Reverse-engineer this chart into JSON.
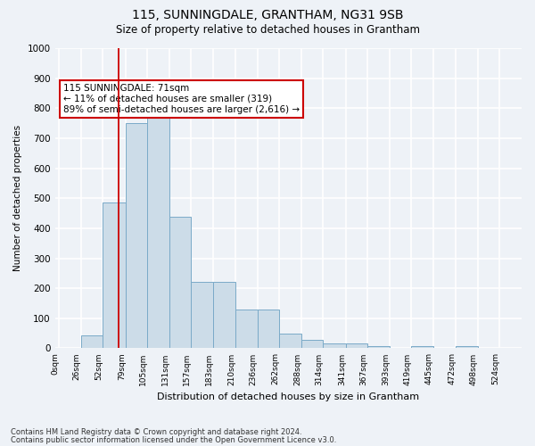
{
  "title": "115, SUNNINGDALE, GRANTHAM, NG31 9SB",
  "subtitle": "Size of property relative to detached houses in Grantham",
  "xlabel": "Distribution of detached houses by size in Grantham",
  "ylabel": "Number of detached properties",
  "bar_labels": [
    "0sqm",
    "26sqm",
    "52sqm",
    "79sqm",
    "105sqm",
    "131sqm",
    "157sqm",
    "183sqm",
    "210sqm",
    "236sqm",
    "262sqm",
    "288sqm",
    "314sqm",
    "341sqm",
    "367sqm",
    "393sqm",
    "419sqm",
    "445sqm",
    "472sqm",
    "498sqm",
    "524sqm"
  ],
  "bar_values": [
    0,
    42,
    485,
    750,
    795,
    438,
    220,
    220,
    130,
    130,
    50,
    28,
    15,
    15,
    8,
    0,
    8,
    0,
    8,
    0,
    0
  ],
  "bar_color": "#ccdce8",
  "bar_edge_color": "#7aaac8",
  "ylim": [
    0,
    1000
  ],
  "yticks": [
    0,
    100,
    200,
    300,
    400,
    500,
    600,
    700,
    800,
    900,
    1000
  ],
  "annotation_text": "115 SUNNINGDALE: 71sqm\n← 11% of detached houses are smaller (319)\n89% of semi-detached houses are larger (2,616) →",
  "annotation_box_color": "#ffffff",
  "annotation_box_edge": "#cc0000",
  "vline_color": "#cc0000",
  "footer_line1": "Contains HM Land Registry data © Crown copyright and database right 2024.",
  "footer_line2": "Contains public sector information licensed under the Open Government Licence v3.0.",
  "background_color": "#eef2f7",
  "grid_color": "#ffffff"
}
